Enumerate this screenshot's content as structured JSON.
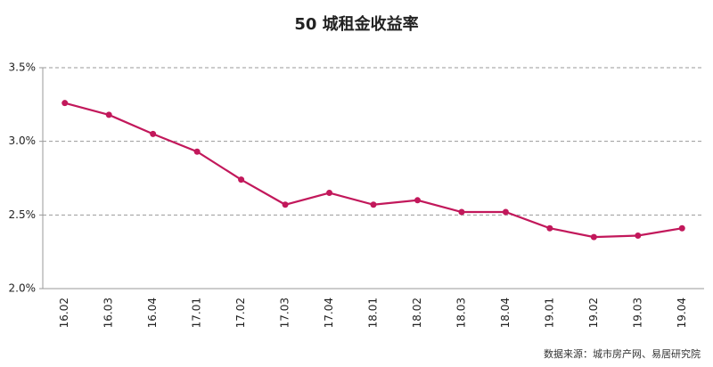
{
  "chart_data": {
    "type": "line",
    "title": "50 城租金收益率",
    "categories": [
      "16.02",
      "16.03",
      "16.04",
      "17.01",
      "17.02",
      "17.03",
      "17.04",
      "18.01",
      "18.02",
      "18.03",
      "18.04",
      "19.01",
      "19.02",
      "19.03",
      "19.04"
    ],
    "values": [
      3.26,
      3.18,
      3.05,
      2.93,
      2.74,
      2.57,
      2.65,
      2.57,
      2.6,
      2.52,
      2.52,
      2.41,
      2.35,
      2.36,
      2.41
    ],
    "color": "#c2185b",
    "ylim": [
      2.0,
      3.5
    ],
    "yticks": [
      {
        "value": 2.0,
        "label": "2.0%"
      },
      {
        "value": 2.5,
        "label": "2.5%"
      },
      {
        "value": 3.0,
        "label": "3.0%"
      },
      {
        "value": 3.5,
        "label": "3.5%"
      }
    ],
    "grid": true,
    "source": "数据来源：城市房产网、易居研究院"
  }
}
